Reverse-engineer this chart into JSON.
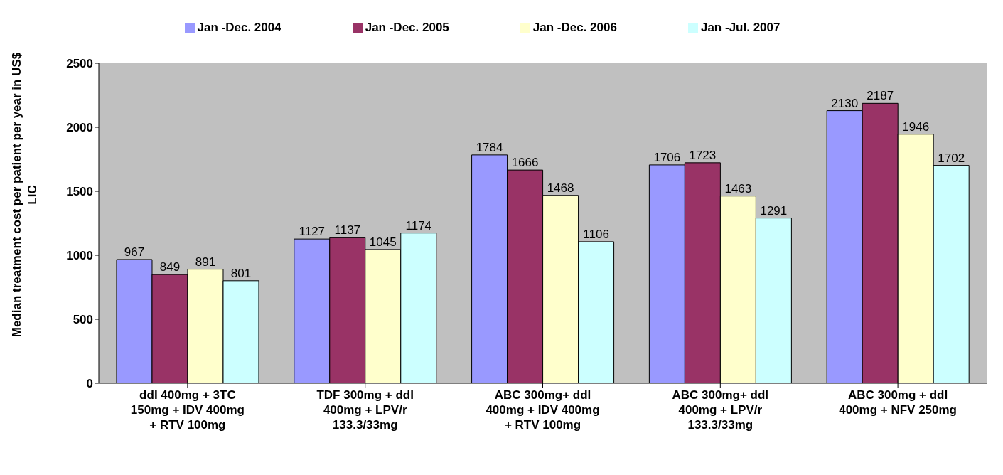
{
  "chart_data": {
    "type": "bar",
    "ylabel": "Median treatment cost per patient per year in US$ LIC",
    "categories": [
      "ddI 400mg + 3TC 150mg + IDV 400mg + RTV 100mg",
      "TDF 300mg + ddI 400mg + LPV/r 133.3/33mg",
      "ABC 300mg+ ddI 400mg + IDV 400mg + RTV 100mg",
      "ABC 300mg+ ddI 400mg + LPV/r 133.3/33mg",
      "ABC 300mg + ddI 400mg + NFV 250mg"
    ],
    "series": [
      {
        "name": "Jan -Dec. 2004",
        "color": "#9999ff",
        "values": [
          967,
          1127,
          1784,
          1706,
          2130
        ]
      },
      {
        "name": "Jan -Dec. 2005",
        "color": "#993366",
        "values": [
          849,
          1137,
          1666,
          1723,
          2187
        ]
      },
      {
        "name": "Jan -Dec. 2006",
        "color": "#ffffcc",
        "values": [
          891,
          1045,
          1468,
          1463,
          1946
        ]
      },
      {
        "name": "Jan -Jul. 2007",
        "color": "#ccffff",
        "values": [
          801,
          1174,
          1106,
          1291,
          1702
        ]
      }
    ],
    "ylim": [
      0,
      2500
    ],
    "yticks": [
      0,
      500,
      1000,
      1500,
      2000,
      2500
    ],
    "grid": false,
    "legend": "top",
    "data_labels": true
  }
}
